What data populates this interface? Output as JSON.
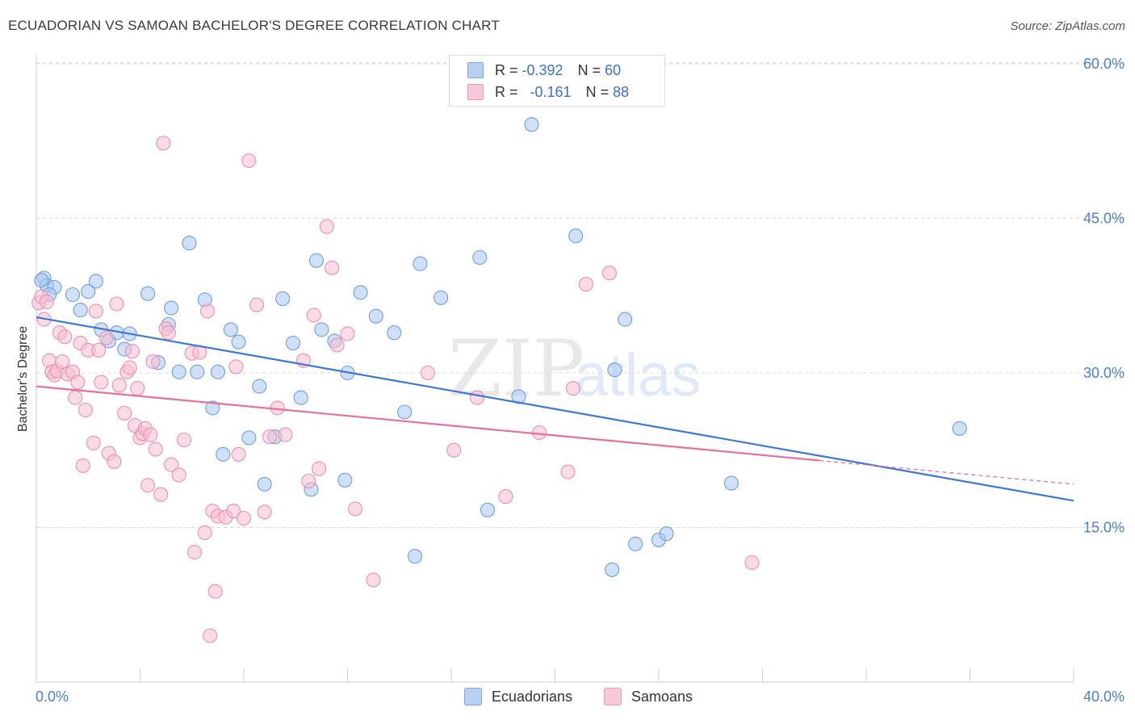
{
  "title": "ECUADORIAN VS SAMOAN BACHELOR'S DEGREE CORRELATION CHART",
  "source": "Source: ZipAtlas.com",
  "watermark": {
    "zip": "ZIP",
    "atlas": "atlas"
  },
  "colors": {
    "blue": "#3b78d8",
    "blue_fill": "#aac8f0",
    "pink": "#e8709a",
    "pink_fill": "#f5b7cb",
    "tick": "#4a7fd0",
    "grid": "#d8d8d8"
  },
  "legend": {
    "rows": [
      {
        "r_label": "R =",
        "r_value": "-0.392",
        "n_label": "N =",
        "n_value": "60"
      },
      {
        "r_label": "R =",
        "r_value": "-0.161",
        "n_label": "N =",
        "n_value": "88"
      }
    ]
  },
  "bottom_legend": [
    "Ecuadorians",
    "Samoans"
  ],
  "chart_data": {
    "type": "scatter",
    "title": "ECUADORIAN VS SAMOAN BACHELOR'S DEGREE CORRELATION CHART",
    "xlabel": "",
    "ylabel": "Bachelor's Degree",
    "xlim": [
      0,
      40
    ],
    "ylim": [
      0,
      60
    ],
    "x_tick_labels": [
      "0.0%",
      "40.0%"
    ],
    "y_ticks": [
      15,
      30,
      45,
      60
    ],
    "y_tick_labels": [
      "15.0%",
      "30.0%",
      "45.0%",
      "60.0%"
    ],
    "grid": true,
    "series": [
      {
        "name": "Ecuadorians",
        "color": "#3b78d8",
        "trend": {
          "x": [
            0,
            40
          ],
          "y": [
            35.4,
            17.6
          ]
        },
        "points": [
          [
            0.3,
            39.2
          ],
          [
            0.4,
            38.5
          ],
          [
            0.7,
            38.3
          ],
          [
            1.4,
            37.6
          ],
          [
            1.7,
            36.1
          ],
          [
            2.0,
            37.9
          ],
          [
            2.3,
            38.9
          ],
          [
            2.5,
            34.2
          ],
          [
            2.8,
            33.1
          ],
          [
            3.1,
            33.9
          ],
          [
            3.6,
            33.8
          ],
          [
            3.4,
            32.3
          ],
          [
            4.3,
            37.7
          ],
          [
            4.7,
            31.0
          ],
          [
            5.1,
            34.7
          ],
          [
            5.2,
            36.3
          ],
          [
            5.5,
            30.1
          ],
          [
            5.9,
            42.6
          ],
          [
            6.2,
            30.1
          ],
          [
            6.5,
            37.1
          ],
          [
            6.8,
            26.6
          ],
          [
            7.0,
            30.1
          ],
          [
            7.2,
            22.1
          ],
          [
            7.5,
            34.2
          ],
          [
            7.8,
            33.0
          ],
          [
            8.2,
            23.7
          ],
          [
            8.6,
            28.7
          ],
          [
            8.8,
            19.2
          ],
          [
            9.2,
            23.8
          ],
          [
            9.5,
            37.2
          ],
          [
            9.9,
            32.9
          ],
          [
            10.2,
            27.6
          ],
          [
            10.6,
            18.7
          ],
          [
            10.8,
            40.9
          ],
          [
            11.0,
            34.2
          ],
          [
            11.5,
            33.1
          ],
          [
            11.9,
            19.6
          ],
          [
            12.0,
            30.0
          ],
          [
            12.5,
            37.8
          ],
          [
            13.1,
            35.5
          ],
          [
            13.8,
            33.9
          ],
          [
            14.2,
            26.2
          ],
          [
            14.6,
            12.2
          ],
          [
            14.8,
            40.6
          ],
          [
            15.6,
            37.3
          ],
          [
            17.1,
            41.2
          ],
          [
            17.4,
            16.7
          ],
          [
            18.6,
            27.7
          ],
          [
            19.1,
            54.1
          ],
          [
            20.8,
            43.3
          ],
          [
            22.2,
            10.9
          ],
          [
            22.3,
            30.3
          ],
          [
            22.7,
            35.2
          ],
          [
            23.1,
            13.4
          ],
          [
            24.0,
            13.8
          ],
          [
            24.3,
            14.4
          ],
          [
            26.8,
            19.3
          ],
          [
            35.6,
            24.6
          ],
          [
            0.2,
            39.0
          ],
          [
            0.5,
            37.6
          ]
        ]
      },
      {
        "name": "Samoans",
        "color": "#e8709a",
        "trend": {
          "x": [
            0,
            30.2
          ],
          "y": [
            28.7,
            21.5
          ]
        },
        "trend_dashed": {
          "x": [
            30.2,
            40
          ],
          "y": [
            21.5,
            19.2
          ]
        },
        "points": [
          [
            0.1,
            36.8
          ],
          [
            0.2,
            37.4
          ],
          [
            0.3,
            35.2
          ],
          [
            0.5,
            31.2
          ],
          [
            0.6,
            30.1
          ],
          [
            0.7,
            29.8
          ],
          [
            0.8,
            30.2
          ],
          [
            0.9,
            33.9
          ],
          [
            1.0,
            31.1
          ],
          [
            1.1,
            33.5
          ],
          [
            1.2,
            29.9
          ],
          [
            1.4,
            30.1
          ],
          [
            1.5,
            27.6
          ],
          [
            1.6,
            29.1
          ],
          [
            1.7,
            32.9
          ],
          [
            1.8,
            21.0
          ],
          [
            1.9,
            26.4
          ],
          [
            2.0,
            32.2
          ],
          [
            2.2,
            23.2
          ],
          [
            2.3,
            36.0
          ],
          [
            2.4,
            32.2
          ],
          [
            2.5,
            29.1
          ],
          [
            2.7,
            33.4
          ],
          [
            2.8,
            22.2
          ],
          [
            3.0,
            21.4
          ],
          [
            3.1,
            36.7
          ],
          [
            3.2,
            28.8
          ],
          [
            3.4,
            26.1
          ],
          [
            3.5,
            30.1
          ],
          [
            3.6,
            30.5
          ],
          [
            3.7,
            32.1
          ],
          [
            3.8,
            24.9
          ],
          [
            3.9,
            28.5
          ],
          [
            4.0,
            23.7
          ],
          [
            4.1,
            24.1
          ],
          [
            4.2,
            24.6
          ],
          [
            4.3,
            19.1
          ],
          [
            4.4,
            24.0
          ],
          [
            4.5,
            31.1
          ],
          [
            4.6,
            22.6
          ],
          [
            4.8,
            18.2
          ],
          [
            4.9,
            52.3
          ],
          [
            5.0,
            34.3
          ],
          [
            5.1,
            33.9
          ],
          [
            5.2,
            21.1
          ],
          [
            5.5,
            20.1
          ],
          [
            5.7,
            23.5
          ],
          [
            6.0,
            31.9
          ],
          [
            6.1,
            12.6
          ],
          [
            6.3,
            32.0
          ],
          [
            6.5,
            14.5
          ],
          [
            6.6,
            36.0
          ],
          [
            6.7,
            4.5
          ],
          [
            6.8,
            16.6
          ],
          [
            6.9,
            8.8
          ],
          [
            7.0,
            16.1
          ],
          [
            7.3,
            16.0
          ],
          [
            7.6,
            16.6
          ],
          [
            7.7,
            30.6
          ],
          [
            7.8,
            22.1
          ],
          [
            8.0,
            15.9
          ],
          [
            8.2,
            50.6
          ],
          [
            8.5,
            36.6
          ],
          [
            8.8,
            16.5
          ],
          [
            9.0,
            23.8
          ],
          [
            9.3,
            26.6
          ],
          [
            9.6,
            24.0
          ],
          [
            10.3,
            31.2
          ],
          [
            10.5,
            19.5
          ],
          [
            10.7,
            35.6
          ],
          [
            10.9,
            20.7
          ],
          [
            11.2,
            44.2
          ],
          [
            11.4,
            40.2
          ],
          [
            11.6,
            32.7
          ],
          [
            12.0,
            33.8
          ],
          [
            12.3,
            16.8
          ],
          [
            13.0,
            9.9
          ],
          [
            15.1,
            30.0
          ],
          [
            16.1,
            22.5
          ],
          [
            17.0,
            27.6
          ],
          [
            18.1,
            18.0
          ],
          [
            19.4,
            24.2
          ],
          [
            20.5,
            20.4
          ],
          [
            20.7,
            28.5
          ],
          [
            21.2,
            38.6
          ],
          [
            22.1,
            39.7
          ],
          [
            27.6,
            11.6
          ],
          [
            0.4,
            36.9
          ]
        ]
      }
    ]
  }
}
